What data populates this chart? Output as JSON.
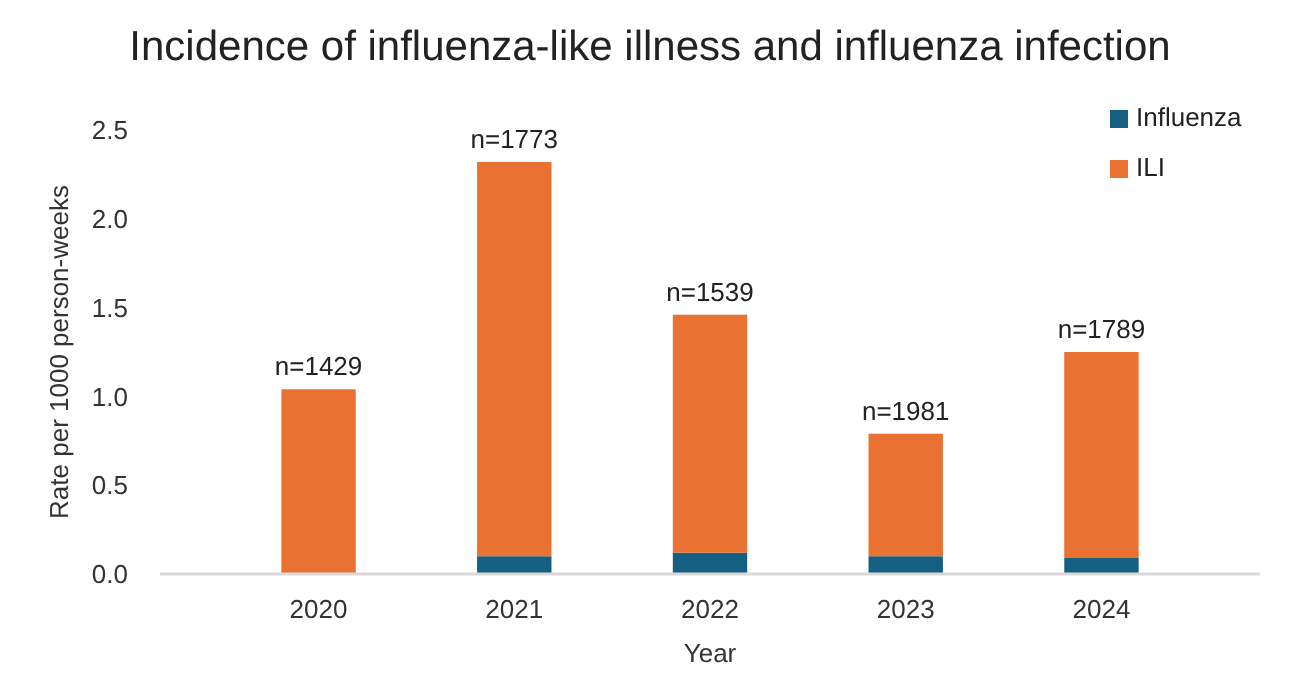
{
  "chart_data": {
    "type": "bar",
    "title": "Incidence of influenza-like illness and influenza infection",
    "xlabel": "Year",
    "ylabel": "Rate per 1000 person-weeks",
    "categories": [
      "2020",
      "2021",
      "2022",
      "2023",
      "2024"
    ],
    "stacked": true,
    "series": [
      {
        "name": "Influenza",
        "color": "#156082",
        "values": [
          0,
          0.1,
          0.12,
          0.1,
          0.09
        ]
      },
      {
        "name": "ILI",
        "color": "#e97132",
        "values": [
          1.04,
          2.22,
          1.34,
          0.69,
          1.16
        ]
      }
    ],
    "ylim": [
      0,
      2.5
    ],
    "yticks": [
      {
        "value": 0,
        "label": "0.0"
      },
      {
        "value": 0.5,
        "label": "0.5"
      },
      {
        "value": 1,
        "label": "1.0"
      },
      {
        "value": 1.5,
        "label": "1.5"
      },
      {
        "value": 2,
        "label": "2.0"
      },
      {
        "value": 2.5,
        "label": "2.5"
      }
    ],
    "grid": false,
    "legend": "top right",
    "annotations": [
      {
        "text": "n=1429",
        "x": "2020",
        "y": 1.04
      },
      {
        "text": "n=1773",
        "x": "2021",
        "y": 2.32
      },
      {
        "text": "n=1539",
        "x": "2022",
        "y": 1.46
      },
      {
        "text": "n=1981",
        "x": "2023",
        "y": 0.79
      },
      {
        "text": "n=1789",
        "x": "2024",
        "y": 1.25
      }
    ]
  }
}
